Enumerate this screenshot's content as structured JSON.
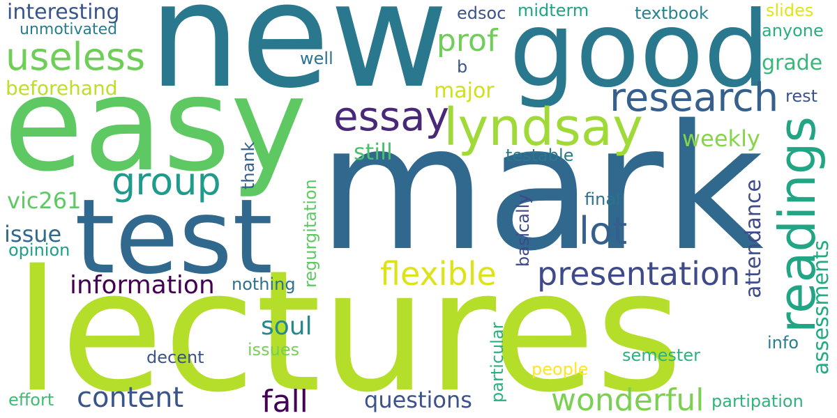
{
  "words": [
    {
      "text": "new",
      "color": "#2a788e"
    },
    {
      "text": "good",
      "color": "#2a788e"
    },
    {
      "text": "easy",
      "color": "#5ec962"
    },
    {
      "text": "mark",
      "color": "#31688e"
    },
    {
      "text": "lectures",
      "color": "#b5de2b"
    },
    {
      "text": "test",
      "color": "#31688e"
    },
    {
      "text": "readings",
      "color": "#21a585"
    },
    {
      "text": "research",
      "color": "#355f8d"
    },
    {
      "text": "lyndsay",
      "color": "#a0da39"
    },
    {
      "text": "essay",
      "color": "#482878"
    },
    {
      "text": "useless",
      "color": "#6ece58"
    },
    {
      "text": "group",
      "color": "#1e9b8a"
    },
    {
      "text": "lot",
      "color": "#35608d"
    },
    {
      "text": "presentation",
      "color": "#3e4a89"
    },
    {
      "text": "flexible",
      "color": "#dde318"
    },
    {
      "text": "information",
      "color": "#440154"
    },
    {
      "text": "content",
      "color": "#39568c"
    },
    {
      "text": "wonderful",
      "color": "#7ad151"
    },
    {
      "text": "fall",
      "color": "#440154"
    },
    {
      "text": "questions",
      "color": "#3b528b"
    },
    {
      "text": "prof",
      "color": "#6ece58"
    },
    {
      "text": "soul",
      "color": "#23898e"
    },
    {
      "text": "interesting",
      "color": "#39568c"
    },
    {
      "text": "unmotivated",
      "color": "#287c8e"
    },
    {
      "text": "beforehand",
      "color": "#bddf26"
    },
    {
      "text": "vic261",
      "color": "#5ec962"
    },
    {
      "text": "issue",
      "color": "#31688e"
    },
    {
      "text": "opinion",
      "color": "#1f9e89"
    },
    {
      "text": "major",
      "color": "#d0e11c"
    },
    {
      "text": "well",
      "color": "#2c728e"
    },
    {
      "text": "b",
      "color": "#39568c"
    },
    {
      "text": "edsoc",
      "color": "#3b528b"
    },
    {
      "text": "midterm",
      "color": "#20a486"
    },
    {
      "text": "textbook",
      "color": "#26828e"
    },
    {
      "text": "slides",
      "color": "#e2e418"
    },
    {
      "text": "anyone",
      "color": "#29af7f"
    },
    {
      "text": "grade",
      "color": "#37b878"
    },
    {
      "text": "rest",
      "color": "#3b528b"
    },
    {
      "text": "weekly",
      "color": "#86d549"
    },
    {
      "text": "still",
      "color": "#4ac16d"
    },
    {
      "text": "testable",
      "color": "#2a788e"
    },
    {
      "text": "final",
      "color": "#2c728e"
    },
    {
      "text": "nothing",
      "color": "#2c728e"
    },
    {
      "text": "issues",
      "color": "#75d054"
    },
    {
      "text": "decent",
      "color": "#3b528b"
    },
    {
      "text": "people",
      "color": "#fde725"
    },
    {
      "text": "semester",
      "color": "#2db27d"
    },
    {
      "text": "info",
      "color": "#287d8e"
    },
    {
      "text": "effort",
      "color": "#3fbc73"
    },
    {
      "text": "partipation",
      "color": "#2fb47c"
    },
    {
      "text": "thank",
      "color": "#355f8d"
    },
    {
      "text": "regurgitation",
      "color": "#5ec962"
    },
    {
      "text": "basically",
      "color": "#3e4989"
    },
    {
      "text": "particular",
      "color": "#2ab07f"
    },
    {
      "text": "attendance",
      "color": "#3e4a89"
    },
    {
      "text": "assessments",
      "color": "#23a983"
    }
  ]
}
